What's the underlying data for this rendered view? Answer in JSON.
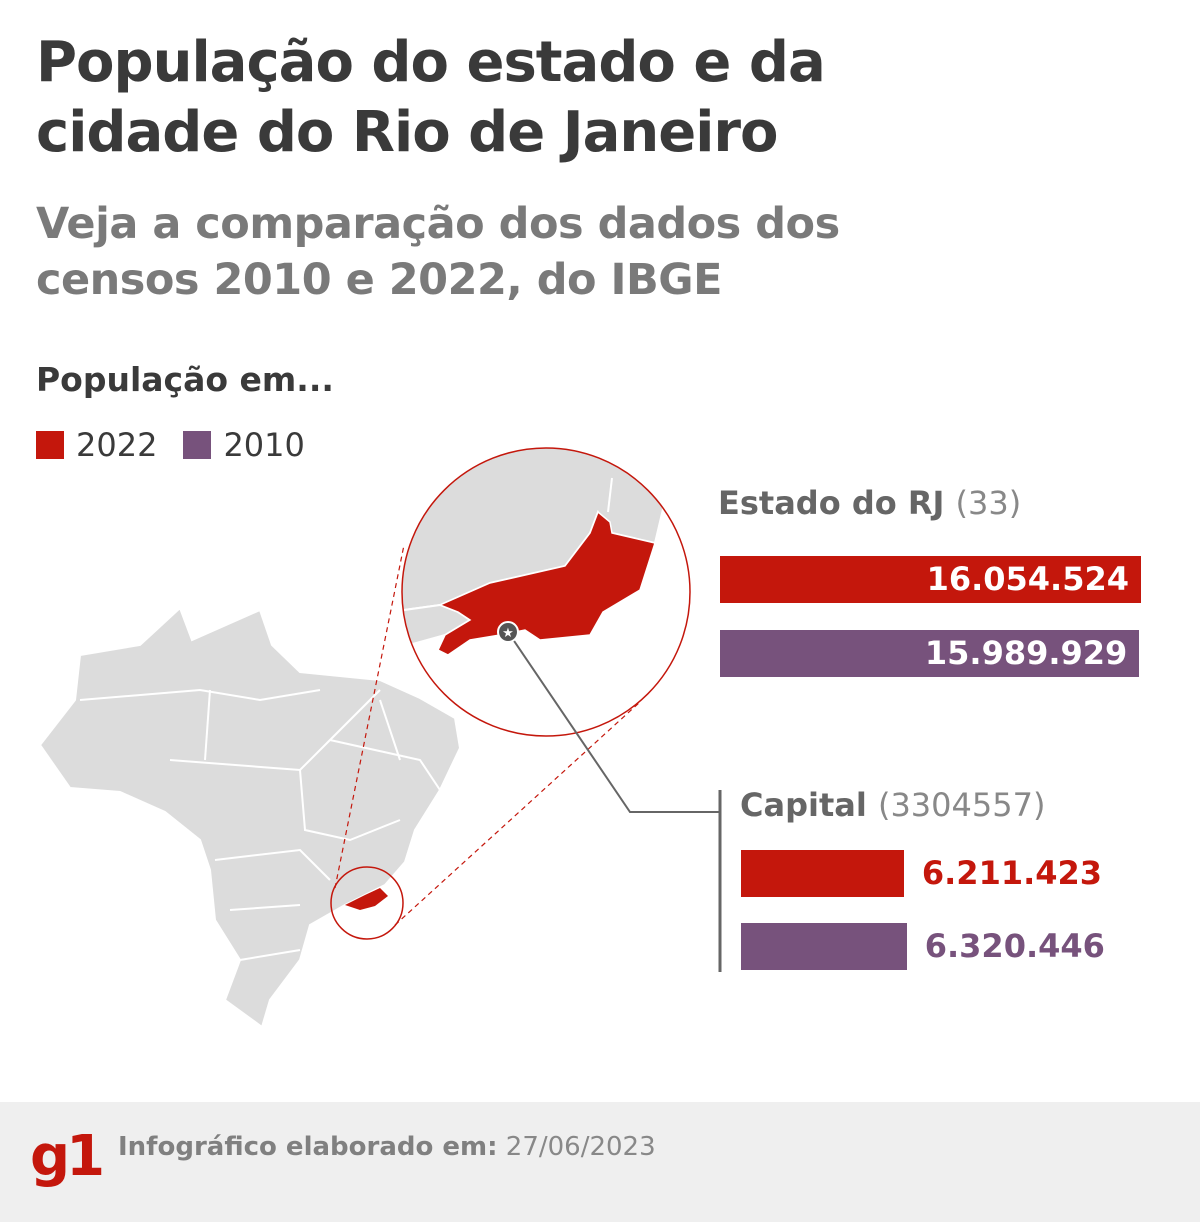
{
  "title": "População do estado e da cidade do Rio de Janeiro",
  "subtitle": "Veja a comparação dos dados dos censos 2010 e 2022, do IBGE",
  "legend": {
    "title": "População em...",
    "items": [
      {
        "label": "2022",
        "color": "#c4170c"
      },
      {
        "label": "2010",
        "color": "#77527c"
      }
    ]
  },
  "chart_data": {
    "type": "bar",
    "orientation": "horizontal",
    "series": [
      {
        "name": "2022",
        "color": "#c4170c",
        "values": [
          16054524,
          6211423
        ]
      },
      {
        "name": "2010",
        "color": "#77527c",
        "values": [
          15989929,
          6320446
        ]
      }
    ],
    "categories": [
      "Estado do RJ",
      "Capital"
    ],
    "category_codes": [
      "(33)",
      "(3304557)"
    ],
    "value_labels": [
      [
        "16.054.524",
        "6.211.423"
      ],
      [
        "15.989.929",
        "6.320.446"
      ]
    ],
    "legend_placement": "top-left",
    "grid": false
  },
  "map": {
    "highlight_color": "#c4170c",
    "land_color": "#dcdcdc",
    "capital_marker": "star-icon"
  },
  "footer": {
    "logo": "g1",
    "label": "Infográfico elaborado em:",
    "date": "27/06/2023"
  }
}
